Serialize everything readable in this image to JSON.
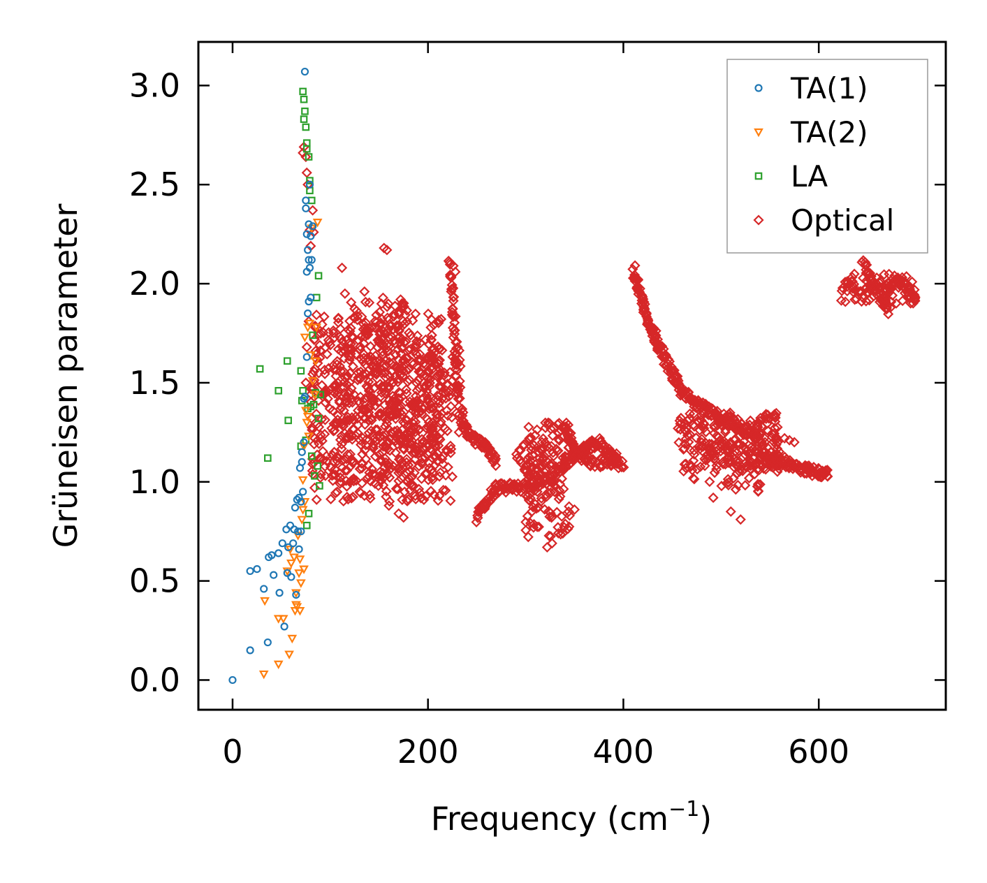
{
  "chart_data": {
    "type": "scatter",
    "title": "",
    "xlabel": "Frequency (cm",
    "xlabel_sup": "−1",
    "xlabel_close": ")",
    "ylabel": "Grüneisen parameter",
    "xlim": [
      -35,
      730
    ],
    "ylim": [
      -0.15,
      3.22
    ],
    "xticks": [
      0,
      200,
      400,
      600
    ],
    "yticks": [
      0.0,
      0.5,
      1.0,
      1.5,
      2.0,
      2.5,
      3.0
    ],
    "xtick_labels": [
      "0",
      "200",
      "400",
      "600"
    ],
    "ytick_labels": [
      "0.0",
      "0.5",
      "1.0",
      "1.5",
      "2.0",
      "2.5",
      "3.0"
    ],
    "grid": false,
    "legend_position": "top-right",
    "series": [
      {
        "name": "TA(1)",
        "marker": "circle",
        "color": "#1f77b4",
        "points": [
          [
            0,
            0
          ],
          [
            18,
            0.15
          ],
          [
            18,
            0.55
          ],
          [
            25,
            0.56
          ],
          [
            32,
            0.46
          ],
          [
            36,
            0.19
          ],
          [
            37,
            0.62
          ],
          [
            40,
            0.63
          ],
          [
            42,
            0.53
          ],
          [
            47,
            0.64
          ],
          [
            48,
            0.44
          ],
          [
            51,
            0.69
          ],
          [
            53,
            0.27
          ],
          [
            55,
            0.76
          ],
          [
            56,
            0.54
          ],
          [
            57,
            0.67
          ],
          [
            59,
            0.78
          ],
          [
            60,
            0.52
          ],
          [
            62,
            0.69
          ],
          [
            63,
            0.76
          ],
          [
            64,
            0.87
          ],
          [
            65,
            0.43
          ],
          [
            66,
            0.91
          ],
          [
            67,
            0.75
          ],
          [
            68,
            0.66
          ],
          [
            68,
            0.92
          ],
          [
            69,
            1.07
          ],
          [
            70,
            0.9
          ],
          [
            70,
            0.75
          ],
          [
            71,
            1.1
          ],
          [
            71,
            1.15
          ],
          [
            72,
            0.95
          ],
          [
            73,
            1.2
          ],
          [
            73,
            1.42
          ],
          [
            74,
            1.43
          ],
          [
            74,
            3.07
          ],
          [
            75,
            2.38
          ],
          [
            75,
            2.42
          ],
          [
            76,
            1.63
          ],
          [
            76,
            2.06
          ],
          [
            76,
            2.25
          ],
          [
            77,
            1.85
          ],
          [
            77,
            2.17
          ],
          [
            78,
            1.91
          ],
          [
            78,
            2.12
          ],
          [
            78,
            2.3
          ],
          [
            79,
            2.08
          ],
          [
            79,
            2.5
          ],
          [
            80,
            2.24
          ],
          [
            80,
            1.93
          ],
          [
            81,
            2.12
          ],
          [
            82,
            2.29
          ]
        ]
      },
      {
        "name": "TA(2)",
        "marker": "triangle-down",
        "color": "#ff7f0e",
        "points": [
          [
            32,
            0.03
          ],
          [
            33,
            0.4
          ],
          [
            47,
            0.31
          ],
          [
            47,
            0.08
          ],
          [
            52,
            0.31
          ],
          [
            56,
            0.55
          ],
          [
            58,
            0.13
          ],
          [
            59,
            0.66
          ],
          [
            60,
            0.59
          ],
          [
            61,
            0.21
          ],
          [
            63,
            0.62
          ],
          [
            64,
            0.35
          ],
          [
            65,
            0.44
          ],
          [
            65,
            0.38
          ],
          [
            66,
            0.37
          ],
          [
            67,
            0.73
          ],
          [
            68,
            0.54
          ],
          [
            69,
            0.61
          ],
          [
            69,
            0.35
          ],
          [
            70,
            0.49
          ],
          [
            71,
            0.81
          ],
          [
            72,
            0.86
          ],
          [
            72,
            1.01
          ],
          [
            73,
            0.56
          ],
          [
            73,
            1.18
          ],
          [
            74,
            1.73
          ],
          [
            74,
            0.9
          ],
          [
            75,
            1.36
          ],
          [
            76,
            1.3
          ],
          [
            77,
            1.33
          ],
          [
            77,
            1.78
          ],
          [
            78,
            1.23
          ],
          [
            79,
            1.8
          ],
          [
            80,
            1.64
          ],
          [
            81,
            2.28
          ],
          [
            82,
            1.51
          ],
          [
            84,
            1.44
          ],
          [
            85,
            1.61
          ],
          [
            86,
            1.78
          ],
          [
            87,
            2.31
          ]
        ]
      },
      {
        "name": "LA",
        "marker": "square",
        "color": "#2ca02c",
        "points": [
          [
            28,
            1.57
          ],
          [
            36,
            1.12
          ],
          [
            47,
            1.46
          ],
          [
            56,
            1.61
          ],
          [
            57,
            1.31
          ],
          [
            70,
            1.56
          ],
          [
            70,
            1.18
          ],
          [
            71,
            1.41
          ],
          [
            72,
            1.46
          ],
          [
            72,
            2.97
          ],
          [
            73,
            2.93
          ],
          [
            73,
            2.83
          ],
          [
            74,
            2.87
          ],
          [
            75,
            2.79
          ],
          [
            75,
            1.21
          ],
          [
            76,
            2.71
          ],
          [
            76,
            2.68
          ],
          [
            76,
            0.78
          ],
          [
            77,
            1.37
          ],
          [
            78,
            2.64
          ],
          [
            78,
            0.84
          ],
          [
            79,
            2.52
          ],
          [
            79,
            2.47
          ],
          [
            80,
            1.38
          ],
          [
            81,
            2.42
          ],
          [
            81,
            1.13
          ],
          [
            82,
            1.74
          ],
          [
            83,
            1.39
          ],
          [
            84,
            1.03
          ],
          [
            85,
            1.45
          ],
          [
            86,
            1.93
          ],
          [
            87,
            1.08
          ],
          [
            88,
            1.32
          ],
          [
            88,
            2.04
          ],
          [
            89,
            0.98
          ],
          [
            90,
            1.44
          ]
        ]
      },
      {
        "name": "Optical",
        "marker": "diamond",
        "color": "#d62728",
        "clusters": [
          {
            "n": 550,
            "x": [
              80,
              215
            ],
            "y": [
              1.0,
              1.85
            ]
          },
          {
            "n": 260,
            "x": [
              100,
              225
            ],
            "y": [
              0.9,
              1.65
            ]
          },
          {
            "n": 90,
            "x": [
              150,
              235
            ],
            "y": [
              1.2,
              1.7
            ]
          },
          {
            "n": 50,
            "x": [
              120,
              180
            ],
            "y": [
              1.6,
              1.95
            ]
          },
          {
            "n": 130,
            "x": [
              300,
              345
            ],
            "y": [
              0.72,
              1.3
            ]
          },
          {
            "n": 40,
            "x": [
              290,
              330
            ],
            "y": [
              0.9,
              1.2
            ]
          },
          {
            "n": 220,
            "x": [
              455,
              560
            ],
            "y": [
              1.05,
              1.35
            ]
          },
          {
            "n": 60,
            "x": [
              470,
              540
            ],
            "y": [
              0.95,
              1.2
            ]
          },
          {
            "n": 80,
            "x": [
              622,
              700
            ],
            "y": [
              1.9,
              2.05
            ]
          }
        ],
        "curves": [
          {
            "n": 60,
            "pts": [
              [
                222,
                2.1
              ],
              [
                226,
                1.85
              ],
              [
                230,
                1.55
              ],
              [
                235,
                1.3
              ]
            ]
          },
          {
            "n": 60,
            "pts": [
              [
                235,
                1.3
              ],
              [
                245,
                1.22
              ],
              [
                260,
                1.18
              ],
              [
                270,
                1.1
              ]
            ]
          },
          {
            "n": 90,
            "pts": [
              [
                250,
                0.82
              ],
              [
                270,
                0.97
              ],
              [
                295,
                0.97
              ],
              [
                330,
                1.02
              ]
            ]
          },
          {
            "n": 100,
            "pts": [
              [
                330,
                1.05
              ],
              [
                355,
                1.15
              ],
              [
                375,
                1.2
              ],
              [
                395,
                1.1
              ]
            ]
          },
          {
            "n": 80,
            "pts": [
              [
                340,
                1.3
              ],
              [
                350,
                1.15
              ],
              [
                365,
                1.1
              ],
              [
                400,
                1.09
              ]
            ]
          },
          {
            "n": 120,
            "pts": [
              [
                410,
                2.07
              ],
              [
                425,
                1.82
              ],
              [
                440,
                1.65
              ],
              [
                460,
                1.45
              ]
            ]
          },
          {
            "n": 100,
            "pts": [
              [
                460,
                1.45
              ],
              [
                480,
                1.38
              ],
              [
                510,
                1.3
              ],
              [
                540,
                1.22
              ]
            ]
          },
          {
            "n": 110,
            "pts": [
              [
                540,
                1.12
              ],
              [
                565,
                1.1
              ],
              [
                590,
                1.06
              ],
              [
                610,
                1.04
              ]
            ]
          },
          {
            "n": 40,
            "pts": [
              [
                645,
                2.12
              ],
              [
                655,
                2.0
              ],
              [
                665,
                1.93
              ],
              [
                672,
                1.87
              ]
            ]
          },
          {
            "n": 40,
            "pts": [
              [
                665,
                1.9
              ],
              [
                678,
                2.02
              ],
              [
                690,
                1.98
              ],
              [
                698,
                1.93
              ]
            ]
          }
        ],
        "points": [
          [
            72,
            2.66
          ],
          [
            73,
            2.69
          ],
          [
            75,
            2.64
          ],
          [
            76,
            2.56
          ],
          [
            77,
            2.5
          ],
          [
            79,
            2.27
          ],
          [
            80,
            2.19
          ],
          [
            82,
            2.37
          ],
          [
            83,
            2.26
          ],
          [
            75,
            1.5
          ],
          [
            76,
            1.68
          ],
          [
            78,
            1.81
          ],
          [
            80,
            1.47
          ],
          [
            84,
            1.22
          ],
          [
            84,
            0.97
          ],
          [
            86,
            0.91
          ],
          [
            112,
            2.08
          ],
          [
            115,
            1.95
          ],
          [
            135,
            1.96
          ],
          [
            155,
            2.18
          ],
          [
            158,
            2.17
          ],
          [
            172,
            1.92
          ],
          [
            198,
            1.59
          ],
          [
            210,
            1.6
          ],
          [
            226,
            2.09
          ],
          [
            228,
            2.06
          ],
          [
            86,
            1.62
          ],
          [
            88,
            1.41
          ],
          [
            90,
            1.22
          ],
          [
            130,
            0.95
          ],
          [
            135,
            0.93
          ],
          [
            160,
            0.88
          ],
          [
            170,
            0.84
          ],
          [
            175,
            0.82
          ],
          [
            322,
            0.67
          ],
          [
            327,
            0.69
          ],
          [
            338,
            0.74
          ],
          [
            345,
            0.83
          ],
          [
            350,
            0.86
          ],
          [
            492,
            0.92
          ],
          [
            510,
            0.85
          ],
          [
            520,
            0.81
          ],
          [
            565,
            1.22
          ],
          [
            570,
            1.21
          ],
          [
            575,
            1.2
          ],
          [
            540,
            1.21
          ],
          [
            548,
            1.14
          ]
        ]
      }
    ]
  }
}
